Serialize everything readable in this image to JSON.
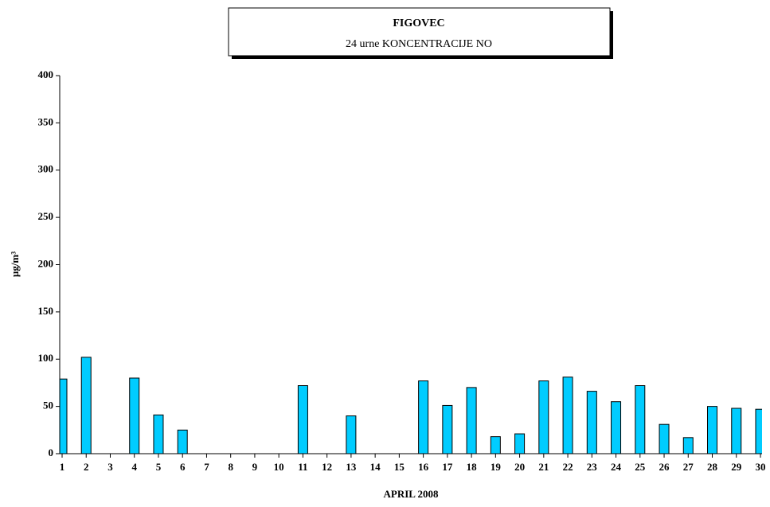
{
  "chart_data": {
    "type": "bar",
    "title": "FIGOVEC",
    "subtitle": "24 urne KONCENTRACIJE NO",
    "x_label": "APRIL 2008",
    "y_label": "µg/m³",
    "categories": [
      "1",
      "2",
      "3",
      "4",
      "5",
      "6",
      "7",
      "8",
      "9",
      "10",
      "11",
      "12",
      "13",
      "14",
      "15",
      "16",
      "17",
      "18",
      "19",
      "20",
      "21",
      "22",
      "23",
      "24",
      "25",
      "26",
      "27",
      "28",
      "29",
      "30"
    ],
    "values": [
      79,
      102,
      null,
      80,
      41,
      25,
      null,
      null,
      null,
      null,
      72,
      null,
      40,
      null,
      null,
      77,
      51,
      70,
      18,
      21,
      77,
      81,
      66,
      55,
      72,
      31,
      17,
      50,
      48,
      47
    ],
    "color": "#00ccff",
    "ylim": [
      0,
      400
    ],
    "yticks": [
      0,
      50,
      100,
      150,
      200,
      250,
      300,
      350,
      400
    ]
  }
}
